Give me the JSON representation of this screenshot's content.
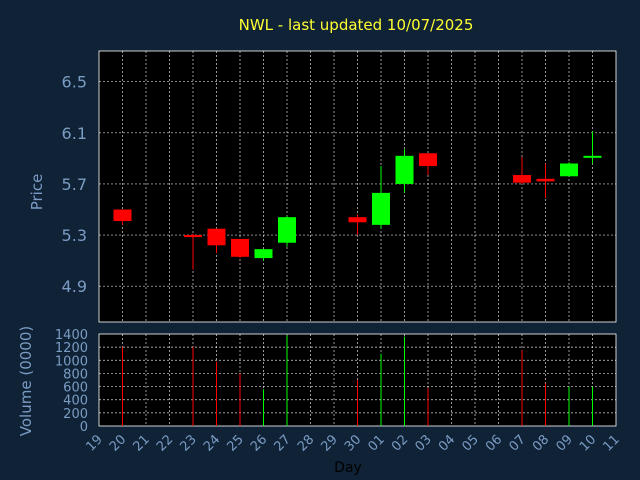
{
  "chart_data": {
    "type": "candlestick",
    "title": "NWL - last updated 10/07/2025",
    "colors": {
      "up": "#00ff00",
      "down": "#ff0000",
      "background": "#0f2236",
      "plot": "#000000",
      "title": "#ffff33",
      "axis_text": "#7b9cc4"
    },
    "price_panel": {
      "ylabel": "Price",
      "ylim": [
        4.62,
        6.74
      ],
      "yticks": [
        "4.9",
        "5.3",
        "5.7",
        "6.1",
        "6.5"
      ],
      "grid": true
    },
    "volume_panel": {
      "ylabel": "Volume (0000)",
      "ylim": [
        0,
        1400
      ],
      "yticks": [
        "0",
        "200",
        "400",
        "600",
        "800",
        "1000",
        "1200",
        "1400"
      ],
      "grid": true
    },
    "x_axis": {
      "xlabel": "Day",
      "ticks": [
        "19",
        "20",
        "21",
        "22",
        "23",
        "24",
        "25",
        "26",
        "27",
        "28",
        "29",
        "30",
        "01",
        "02",
        "03",
        "04",
        "05",
        "06",
        "07",
        "08",
        "09",
        "10",
        "11"
      ]
    },
    "candles": [
      {
        "day": "20",
        "open": 5.5,
        "high": 5.5,
        "low": 5.38,
        "close": 5.41,
        "volume": 1200
      },
      {
        "day": "23",
        "open": 5.3,
        "high": 5.31,
        "low": 5.03,
        "close": 5.29,
        "volume": 1200
      },
      {
        "day": "24",
        "open": 5.35,
        "high": 5.35,
        "low": 5.16,
        "close": 5.22,
        "volume": 980
      },
      {
        "day": "25",
        "open": 5.27,
        "high": 5.27,
        "low": 5.12,
        "close": 5.13,
        "volume": 800
      },
      {
        "day": "26",
        "open": 5.12,
        "high": 5.19,
        "low": 5.1,
        "close": 5.19,
        "volume": 560
      },
      {
        "day": "27",
        "open": 5.24,
        "high": 5.45,
        "low": 5.21,
        "close": 5.44,
        "volume": 1380
      },
      {
        "day": "30",
        "open": 5.44,
        "high": 5.46,
        "low": 5.3,
        "close": 5.4,
        "volume": 700
      },
      {
        "day": "01",
        "open": 5.38,
        "high": 5.84,
        "low": 5.35,
        "close": 5.63,
        "volume": 1100
      },
      {
        "day": "02",
        "open": 5.7,
        "high": 5.97,
        "low": 5.63,
        "close": 5.92,
        "volume": 1360
      },
      {
        "day": "03",
        "open": 5.94,
        "high": 5.94,
        "low": 5.77,
        "close": 5.84,
        "volume": 580
      },
      {
        "day": "07",
        "open": 5.77,
        "high": 5.91,
        "low": 5.7,
        "close": 5.71,
        "volume": 1150
      },
      {
        "day": "08",
        "open": 5.74,
        "high": 5.86,
        "low": 5.59,
        "close": 5.72,
        "volume": 650
      },
      {
        "day": "09",
        "open": 5.76,
        "high": 5.87,
        "low": 5.76,
        "close": 5.86,
        "volume": 600
      },
      {
        "day": "10",
        "open": 5.91,
        "high": 6.11,
        "low": 5.86,
        "close": 5.92,
        "volume": 600
      }
    ]
  }
}
